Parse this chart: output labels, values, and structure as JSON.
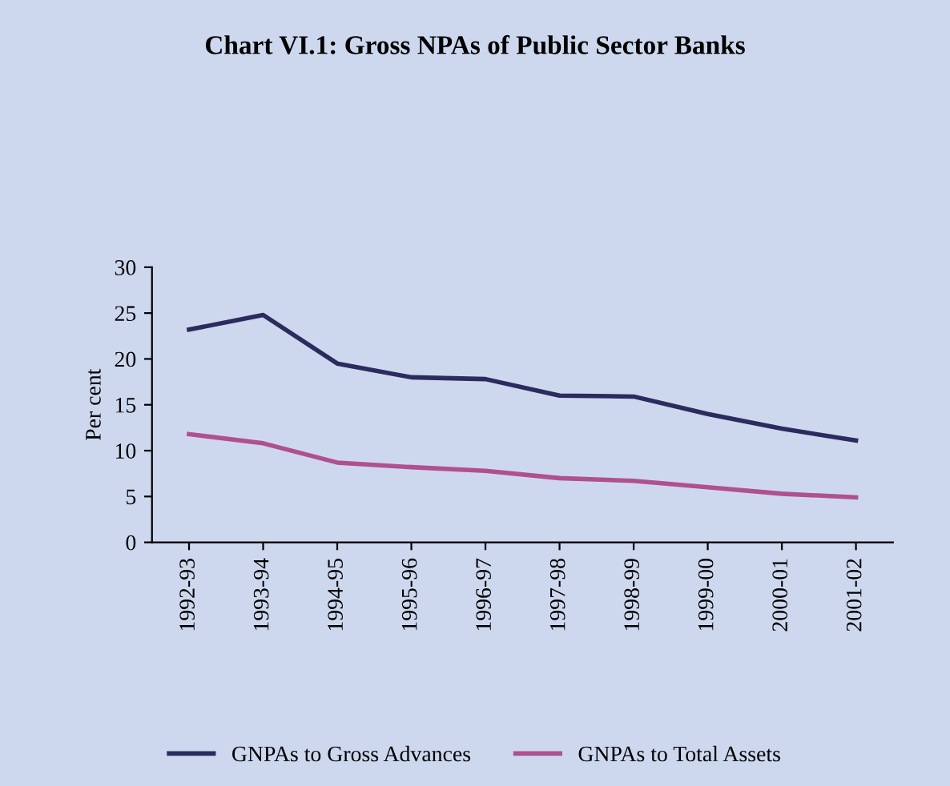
{
  "chart_data": {
    "type": "line",
    "title": "Chart VI.1: Gross NPAs of Public Sector Banks",
    "ylabel": "Per cent",
    "categories": [
      "1992-93",
      "1993-94",
      "1994-95",
      "1995-96",
      "1996-97",
      "1997-98",
      "1998-99",
      "1999-00",
      "2000-01",
      "2001-02"
    ],
    "series": [
      {
        "name": "GNPAs to Gross Advances",
        "color": "#2b2b5e",
        "values": [
          23.2,
          24.8,
          19.5,
          18.0,
          17.8,
          16.0,
          15.9,
          14.0,
          12.4,
          11.1
        ]
      },
      {
        "name": "GNPAs to Total Assets",
        "color": "#b0508f",
        "values": [
          11.8,
          10.8,
          8.7,
          8.2,
          7.8,
          7.0,
          6.7,
          6.0,
          5.3,
          4.9
        ]
      }
    ],
    "ylim": [
      0,
      30
    ],
    "yticks": [
      0,
      5,
      10,
      15,
      20,
      25,
      30
    ],
    "grid": false,
    "legend": "bottom",
    "marker": "none",
    "line_style": "solid"
  }
}
